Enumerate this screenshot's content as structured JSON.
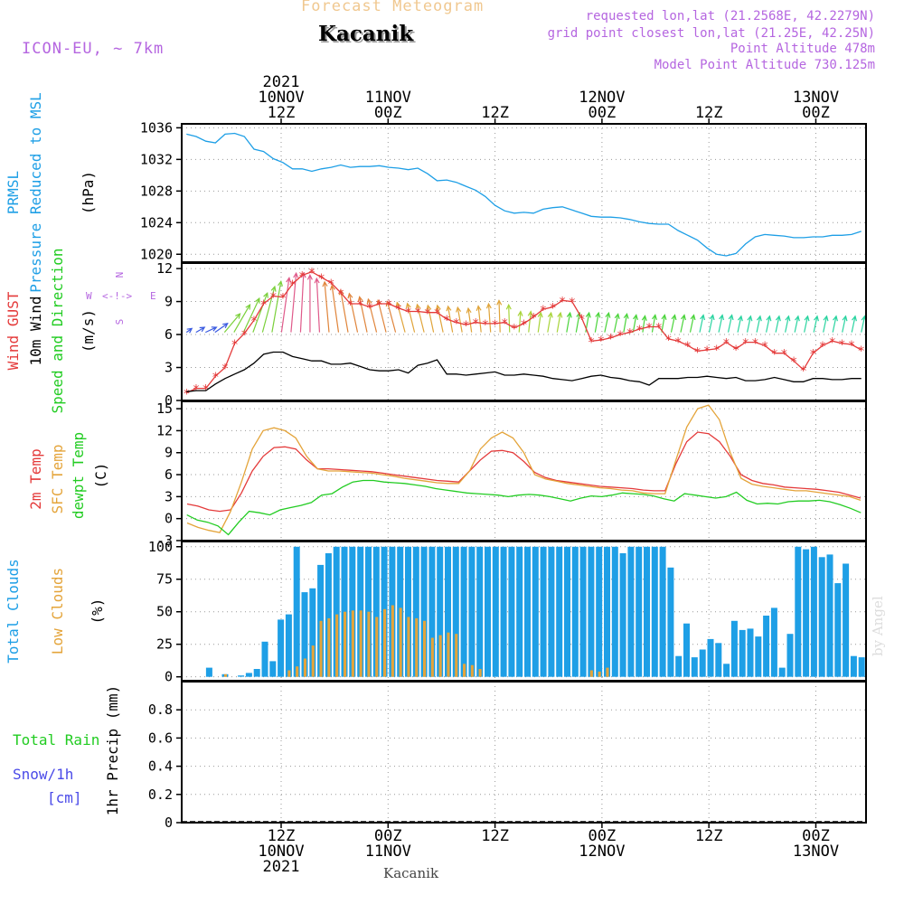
{
  "header": {
    "product": "Forecast Meteogram",
    "location": "Kacanik",
    "model": "ICON-EU, ~ 7km",
    "requested": "requested lon,lat (21.2568E, 42.2279N)",
    "grid_point": "grid point closest lon,lat (21.25E, 42.25N)",
    "point_alt": "Point Altitude 478m",
    "model_alt": "Model Point Altitude 730.125m",
    "watermark": "by Angel",
    "footer_location": "Kacanik"
  },
  "colors": {
    "blue": "#1e9fe6",
    "red": "#e43a3a",
    "orange": "#e4a43a",
    "green": "#22cc22",
    "purple": "#b566e0",
    "gold": "#f0c890",
    "navy": "#3a5ae0",
    "snow": "#4a4ae8"
  },
  "time_axis": {
    "hours": 66,
    "top_labels": [
      {
        "h": 0,
        "lines": [
          "2021",
          "10NOV",
          "12Z"
        ]
      },
      {
        "h": 12,
        "lines": [
          "11NOV",
          "00Z"
        ]
      },
      {
        "h": 24,
        "lines": [
          "12Z"
        ]
      },
      {
        "h": 36,
        "lines": [
          "12NOV",
          "00Z"
        ]
      },
      {
        "h": 48,
        "lines": [
          "12Z"
        ]
      },
      {
        "h": 60,
        "lines": [
          "13NOV",
          "00Z"
        ]
      }
    ],
    "bottom_labels": [
      {
        "h": 0,
        "lines": [
          "12Z",
          "10NOV",
          "2021"
        ]
      },
      {
        "h": 12,
        "lines": [
          "00Z",
          "11NOV"
        ]
      },
      {
        "h": 24,
        "lines": [
          "12Z"
        ]
      },
      {
        "h": 36,
        "lines": [
          "00Z",
          "12NOV"
        ]
      },
      {
        "h": 48,
        "lines": [
          "12Z"
        ]
      },
      {
        "h": 60,
        "lines": [
          "00Z",
          "13NOV"
        ]
      }
    ]
  },
  "chart_data": [
    {
      "type": "line",
      "panel": "pressure",
      "ylabel_lines": [
        "PRMSL",
        "Pressure Reduced to MSL"
      ],
      "unit": "(hPa)",
      "ylim": [
        1019,
        1036.5
      ],
      "yticks": [
        1020,
        1024,
        1028,
        1032,
        1036
      ],
      "series": [
        {
          "color": "blue",
          "values": [
            1035.2,
            1034.9,
            1034.3,
            1034.1,
            1035.2,
            1035.3,
            1034.9,
            1033.3,
            1033.0,
            1032.1,
            1031.6,
            1030.8,
            1030.8,
            1030.5,
            1030.8,
            1031.0,
            1031.3,
            1031.0,
            1031.1,
            1031.1,
            1031.2,
            1031.0,
            1030.9,
            1030.7,
            1030.9,
            1030.2,
            1029.3,
            1029.4,
            1029.1,
            1028.6,
            1028.1,
            1027.3,
            1026.2,
            1025.5,
            1025.2,
            1025.3,
            1025.2,
            1025.7,
            1025.9,
            1026.0,
            1025.6,
            1025.2,
            1024.8,
            1024.7,
            1024.7,
            1024.6,
            1024.4,
            1024.1,
            1023.9,
            1023.8,
            1023.8,
            1023.0,
            1022.4,
            1021.8,
            1020.8,
            1020.0,
            1019.8,
            1020.1,
            1021.3,
            1022.2,
            1022.5,
            1022.4,
            1022.3,
            1022.1,
            1022.1,
            1022.2,
            1022.2,
            1022.4,
            1022.4,
            1022.5,
            1022.9
          ]
        }
      ]
    },
    {
      "type": "line",
      "panel": "wind",
      "ylabel_lines": [
        "Wind GUST",
        "10m Wind",
        "Speed and Direction"
      ],
      "unit": "(m/s)",
      "ylim": [
        0,
        12.5
      ],
      "yticks": [
        0,
        3,
        6,
        9,
        12
      ],
      "series": [
        {
          "name": "Wind GUST",
          "color": "red",
          "marker": "*",
          "values": [
            0.7,
            1.1,
            1.1,
            2.2,
            3.0,
            5.2,
            6.1,
            7.3,
            8.8,
            9.5,
            9.4,
            10.6,
            11.4,
            11.7,
            11.2,
            10.7,
            9.8,
            8.8,
            8.8,
            8.5,
            8.8,
            8.8,
            8.4,
            8.1,
            8.1,
            8.0,
            8.0,
            7.4,
            7.1,
            6.9,
            7.1,
            7.0,
            7.0,
            7.1,
            6.6,
            7.0,
            7.6,
            8.3,
            8.5,
            9.1,
            9.0,
            7.5,
            5.4,
            5.5,
            5.7,
            6.0,
            6.2,
            6.5,
            6.7,
            6.7,
            5.6,
            5.4,
            5.0,
            4.5,
            4.6,
            4.7,
            5.3,
            4.7,
            5.3,
            5.3,
            5.0,
            4.3,
            4.3,
            3.6,
            2.8,
            4.3,
            5.0,
            5.4,
            5.2,
            5.1,
            4.6
          ]
        },
        {
          "name": "10m Wind",
          "color": "black",
          "values": [
            0.8,
            0.9,
            0.9,
            1.5,
            2.0,
            2.4,
            2.8,
            3.4,
            4.2,
            4.4,
            4.4,
            4.0,
            3.8,
            3.6,
            3.6,
            3.3,
            3.3,
            3.4,
            3.1,
            2.8,
            2.7,
            2.7,
            2.8,
            2.5,
            3.2,
            3.4,
            3.7,
            2.4,
            2.4,
            2.3,
            2.4,
            2.5,
            2.6,
            2.3,
            2.3,
            2.4,
            2.3,
            2.2,
            2.0,
            1.9,
            1.8,
            2.0,
            2.2,
            2.3,
            2.1,
            2.0,
            1.8,
            1.7,
            1.4,
            2.0,
            2.0,
            2.0,
            2.1,
            2.1,
            2.2,
            2.1,
            2.0,
            2.1,
            1.8,
            1.8,
            1.9,
            2.1,
            1.9,
            1.7,
            1.7,
            2.0,
            2.0,
            1.9,
            1.9,
            2.0,
            2.0
          ]
        }
      ],
      "arrow_origin": 6.2
    },
    {
      "type": "line",
      "panel": "temperature",
      "ylabel_lines": [
        "2m Temp",
        "SFC Temp",
        "dewpt Temp"
      ],
      "unit": "(C)",
      "ylim": [
        -3,
        16
      ],
      "yticks": [
        -3,
        0,
        3,
        6,
        9,
        12,
        15
      ],
      "series": [
        {
          "name": "2m Temp",
          "color": "red",
          "values": [
            2.0,
            1.7,
            1.2,
            1.0,
            1.2,
            3.5,
            6.5,
            8.5,
            9.7,
            9.8,
            9.5,
            8.0,
            6.8,
            6.8,
            6.7,
            6.6,
            6.5,
            6.4,
            6.2,
            6.0,
            5.8,
            5.6,
            5.4,
            5.2,
            5.1,
            5.0,
            6.5,
            8.0,
            9.2,
            9.3,
            9.0,
            7.8,
            6.3,
            5.6,
            5.2,
            5.0,
            4.8,
            4.6,
            4.4,
            4.3,
            4.2,
            4.1,
            3.9,
            3.8,
            3.8,
            7.5,
            10.5,
            11.8,
            11.6,
            10.5,
            8.5,
            6.0,
            5.2,
            4.8,
            4.6,
            4.3,
            4.2,
            4.1,
            4.0,
            3.8,
            3.6,
            3.2,
            2.8
          ]
        },
        {
          "name": "SFC Temp",
          "color": "orange",
          "values": [
            -0.6,
            -1.2,
            -1.6,
            -1.9,
            1.0,
            5.0,
            9.5,
            12.0,
            12.4,
            12.0,
            11.0,
            8.5,
            6.8,
            6.5,
            6.5,
            6.4,
            6.3,
            6.2,
            6.0,
            5.8,
            5.5,
            5.3,
            5.1,
            4.9,
            4.8,
            4.8,
            6.5,
            9.5,
            11.0,
            11.8,
            11.0,
            9.0,
            6.0,
            5.4,
            5.1,
            4.8,
            4.6,
            4.4,
            4.2,
            4.1,
            3.9,
            3.8,
            3.5,
            3.4,
            3.4,
            8.0,
            12.5,
            15.0,
            15.5,
            13.5,
            9.0,
            5.5,
            4.7,
            4.4,
            4.2,
            4.0,
            3.8,
            3.8,
            3.6,
            3.4,
            3.2,
            3.0,
            2.5
          ]
        },
        {
          "name": "dewpt Temp",
          "color": "green",
          "values": [
            0.5,
            -0.2,
            -0.5,
            -1.0,
            -2.2,
            -0.5,
            1.0,
            0.8,
            0.5,
            1.2,
            1.5,
            1.8,
            2.2,
            3.2,
            3.4,
            4.3,
            5.0,
            5.2,
            5.2,
            5.0,
            4.9,
            4.8,
            4.6,
            4.4,
            4.1,
            3.9,
            3.7,
            3.5,
            3.4,
            3.3,
            3.2,
            3.0,
            3.2,
            3.3,
            3.2,
            3.0,
            2.7,
            2.4,
            2.8,
            3.1,
            3.0,
            3.2,
            3.5,
            3.4,
            3.3,
            3.1,
            2.7,
            2.4,
            3.4,
            3.2,
            3.0,
            2.8,
            3.0,
            3.6,
            2.5,
            2.0,
            2.1,
            2.0,
            2.3,
            2.4,
            2.4,
            2.5,
            2.3,
            1.9,
            1.4,
            0.8
          ]
        }
      ]
    },
    {
      "type": "bar",
      "panel": "clouds",
      "ylabel_lines": [
        "Total Clouds",
        "Low Clouds"
      ],
      "unit": "(%)",
      "ylim": [
        -3,
        104
      ],
      "yticks": [
        0,
        25,
        50,
        75,
        100
      ],
      "series": [
        {
          "name": "Total Clouds",
          "color": "blue",
          "values": [
            0,
            0,
            0,
            7,
            0,
            2,
            0,
            1,
            3,
            6,
            27,
            12,
            44,
            48,
            100,
            65,
            68,
            86,
            95,
            100,
            100,
            100,
            100,
            100,
            100,
            100,
            100,
            100,
            100,
            100,
            100,
            100,
            100,
            100,
            100,
            100,
            100,
            100,
            100,
            100,
            100,
            100,
            100,
            100,
            100,
            100,
            100,
            100,
            100,
            100,
            100,
            100,
            100,
            100,
            100,
            95,
            100,
            100,
            100,
            100,
            100,
            84,
            16,
            41,
            15,
            21,
            29,
            26,
            10,
            43,
            36,
            37,
            31,
            47,
            53,
            7,
            33,
            100,
            98,
            100,
            92,
            94,
            72,
            87,
            16,
            15
          ]
        },
        {
          "name": "Low Clouds",
          "color": "orange",
          "values": [
            0,
            0,
            0,
            0,
            0,
            2,
            0,
            0,
            0,
            0,
            0,
            0,
            0,
            5,
            8,
            14,
            24,
            43,
            45,
            48,
            50,
            51,
            51,
            50,
            46,
            52,
            55,
            53,
            46,
            45,
            43,
            30,
            32,
            34,
            33,
            10,
            9,
            6,
            0,
            0,
            0,
            0,
            0,
            0,
            0,
            0,
            0,
            0,
            0,
            0,
            0,
            5,
            4,
            7,
            0,
            0,
            0,
            0,
            0,
            0,
            0,
            0,
            0,
            0,
            0,
            0,
            0,
            0,
            0,
            0,
            0,
            0,
            0,
            0,
            0,
            0,
            0,
            0,
            0,
            0,
            0,
            0,
            0,
            0,
            0,
            0
          ]
        }
      ]
    },
    {
      "type": "line",
      "panel": "precip",
      "ylabel_lines": [
        "1hr Precip (mm)"
      ],
      "side_lines": [
        "Total Rain",
        "Snow/1h",
        "[cm]"
      ],
      "ylim": [
        0,
        1.0
      ],
      "yticks": [
        0,
        0.2,
        0.4,
        0.6,
        0.8
      ],
      "ytick_labels": [
        "0",
        "0.2",
        "0.4",
        "0.6",
        "0.8"
      ],
      "series": [
        {
          "name": "Total Rain",
          "color": "green",
          "values": []
        },
        {
          "name": "Snow/1h",
          "color": "snow",
          "values": []
        }
      ]
    }
  ],
  "wind_arrows": {
    "speeds": [
      0.6,
      0.9,
      1.1,
      1.4,
      2.2,
      2.9,
      3.4,
      3.8,
      4.3,
      4.7,
      5.0,
      5.4,
      5.4,
      5.2,
      4.9,
      4.6,
      4.3,
      3.9,
      3.6,
      3.3,
      3.1,
      3.0,
      2.9,
      2.8,
      2.7,
      2.6,
      2.5,
      2.5,
      2.4,
      2.3,
      2.2,
      2.4,
      2.6,
      2.9,
      2.5,
      1.9,
      1.9,
      1.8,
      1.8,
      1.8,
      1.8,
      1.8,
      1.8,
      1.8,
      1.8,
      1.7,
      1.7,
      1.6,
      1.5,
      1.6,
      1.6,
      1.6,
      1.6,
      1.6,
      1.6,
      1.6,
      1.6,
      1.6,
      1.5,
      1.5,
      1.5,
      1.5,
      1.5,
      1.5,
      1.5,
      1.5,
      1.5,
      1.5,
      1.5,
      1.5,
      1.5,
      1.5
    ],
    "dirs": [
      55,
      60,
      65,
      55,
      40,
      30,
      25,
      20,
      15,
      10,
      8,
      5,
      3,
      0,
      -3,
      -5,
      -8,
      -10,
      -12,
      -12,
      -14,
      -14,
      -15,
      -15,
      -14,
      -14,
      -12,
      -12,
      -10,
      -10,
      -8,
      -6,
      -4,
      -2,
      -2,
      4,
      6,
      8,
      10,
      10,
      10,
      10,
      10,
      10,
      12,
      12,
      10,
      10,
      8,
      10,
      10,
      12,
      12,
      12,
      12,
      12,
      12,
      12,
      12,
      12,
      12,
      12,
      12,
      12,
      12,
      12,
      12,
      12,
      12,
      12,
      12,
      12
    ]
  }
}
